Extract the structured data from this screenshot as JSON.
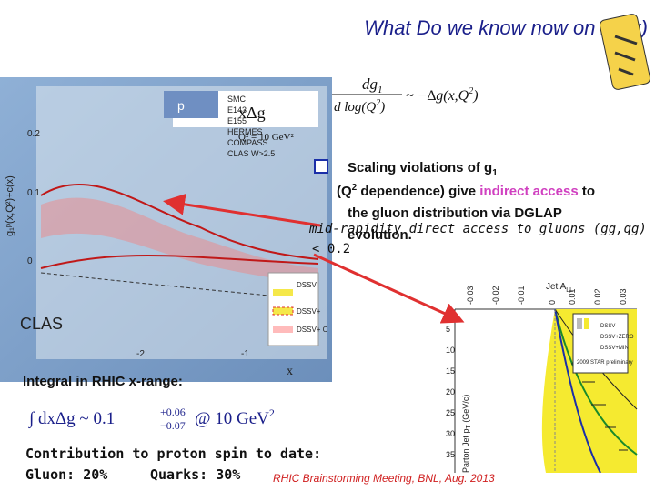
{
  "slide": {
    "title": "What Do we know now on ∆g(x)",
    "formula": {
      "numerator": "dg",
      "num_sub": "1",
      "denominator": "d log(Q",
      "den_sup": "2",
      "den_close": ")",
      "rhs": "~ −∆g(x,Q",
      "rhs_sup": "2",
      "rhs_close": ")"
    },
    "bullets": {
      "line1_a": "Scaling violations of g",
      "line1_sub": "1",
      "line2_a": "(Q",
      "line2_sup": "2",
      "line2_b": " dependence) give ",
      "line2_hl": "indirect access",
      "line2_c": " to",
      "line3": "the gluon distribution via DGLAP",
      "line4": "evolution.",
      "overlay": "mid-rapidity direct access to gluons (gg,qg)",
      "overlay2": "< 0.2"
    },
    "left_plot": {
      "panel": "p",
      "legend": [
        "SMC",
        "E143",
        "E155",
        "HERMES",
        "COMPASS",
        "CLAS W>2.5"
      ],
      "curve_label": "xΔg",
      "scale": "Q² = 10 GeV²",
      "y_label": "g₁ᵖ(x,Q²)+c(x)",
      "ticks": [
        "0.2",
        "0.1",
        "0"
      ],
      "bands": [
        "DSSV",
        "DSSV+",
        "DSSV+ C"
      ],
      "clas": "CLAS",
      "x_label": "x",
      "xticks": [
        "-2",
        "-1"
      ]
    },
    "right_plot": {
      "title": "Jet A",
      "title_sub": "LL",
      "x_label": "Parton Jet p",
      "x_label_sub": "T",
      "x_unit": " (GeV/c)",
      "legend": [
        "DSSV",
        "DSSV+ZERO",
        "DSSV+MIN",
        "2009 STAR preliminary"
      ],
      "ticks": [
        "5",
        "10",
        "15",
        "20",
        "25",
        "30",
        "35"
      ],
      "vticks": [
        "-0.03",
        "-0.02",
        "-0.01",
        "0",
        "0.01",
        "0.02",
        "0.03"
      ]
    },
    "integral_heading": "Integral in RHIC x-range:",
    "integral": {
      "lead": "∫ dxΔg ~ 0.1",
      "plus": "+0.06",
      "minus": "−0.07",
      "at": "@ 10 GeV",
      "at_sup": "2"
    },
    "contribution": "Contribution to proton spin to date:",
    "gluon": "Gluon: 20%",
    "quarks": "Quarks: 30%",
    "footer": "RHIC Brainstorming Meeting, BNL, Aug. 2013"
  }
}
